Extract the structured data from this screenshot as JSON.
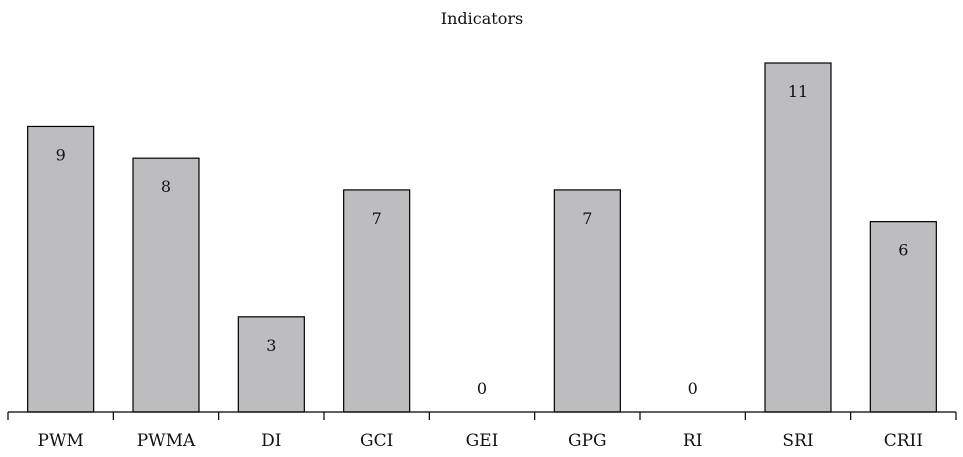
{
  "chart_data": {
    "type": "bar",
    "title": "Indicators",
    "xlabel": "",
    "ylabel": "",
    "categories": [
      "PWM",
      "PWMA",
      "DI",
      "GCI",
      "GEI",
      "GPG",
      "RI",
      "SRI",
      "CRII"
    ],
    "values": [
      9,
      8,
      3,
      7,
      0,
      7,
      0,
      11,
      6
    ],
    "ylim": [
      0,
      11
    ],
    "grid": false,
    "legend": "none",
    "bar_color": "#bdbdbf"
  }
}
